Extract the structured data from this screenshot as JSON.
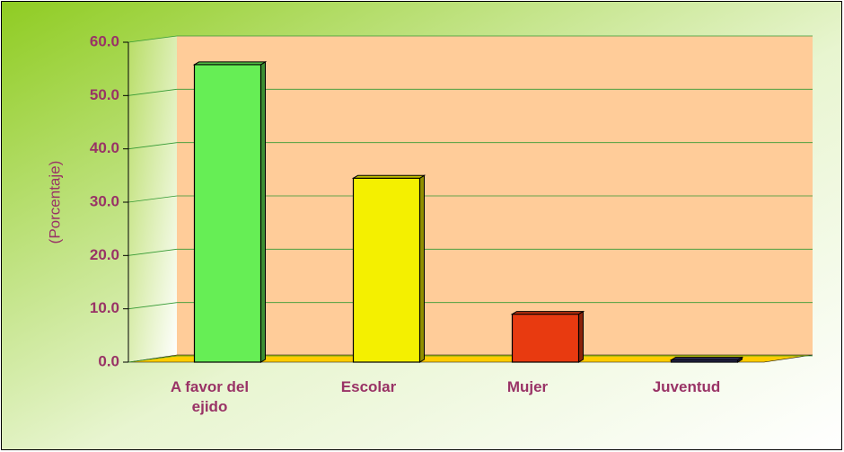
{
  "chart_data": {
    "type": "bar3d",
    "y_label": "(Porcentaje)",
    "categories": [
      "A favor del ejido",
      "Escolar",
      "Mujer",
      "Juventud"
    ],
    "values": [
      55.8,
      34.5,
      9.0,
      0.4
    ],
    "colors": [
      "#66ee55",
      "#f4f000",
      "#e83a10",
      "#333366"
    ],
    "ylim": [
      0,
      60
    ],
    "yticks": [
      {
        "value": 0,
        "label": "0.0"
      },
      {
        "value": 10,
        "label": "10.0"
      },
      {
        "value": 20,
        "label": "20.0"
      },
      {
        "value": 30,
        "label": "30.0"
      },
      {
        "value": 40,
        "label": "40.0"
      },
      {
        "value": 50,
        "label": "50.0"
      },
      {
        "value": 60,
        "label": "60.0"
      }
    ],
    "grid": true
  }
}
